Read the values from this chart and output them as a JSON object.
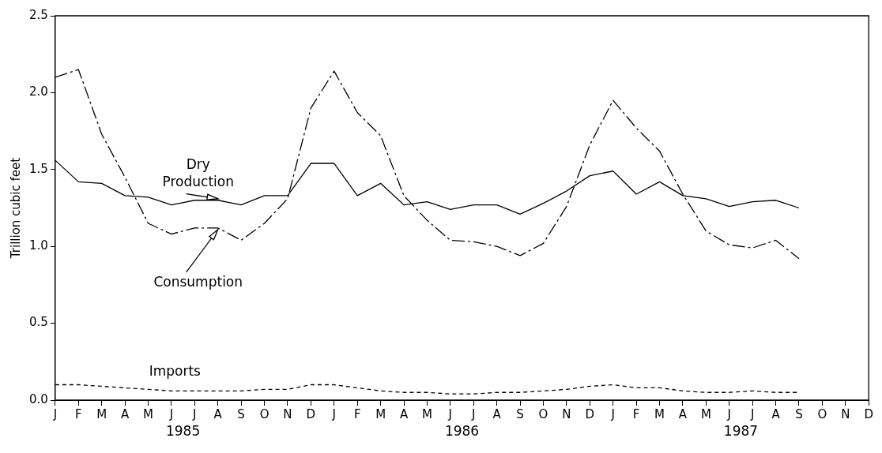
{
  "chart_data": {
    "type": "line",
    "ylabel": "Trillion cubic feet",
    "categories": [
      "J",
      "F",
      "M",
      "A",
      "M",
      "J",
      "J",
      "A",
      "S",
      "O",
      "N",
      "D",
      "J",
      "F",
      "M",
      "A",
      "M",
      "J",
      "J",
      "A",
      "S",
      "O",
      "N",
      "D",
      "J",
      "F",
      "M",
      "A",
      "M",
      "J",
      "J",
      "A",
      "S",
      "O",
      "N",
      "D"
    ],
    "series": [
      {
        "name": "Dry Production",
        "color": "#000000",
        "line_style": "solid",
        "values": [
          1.56,
          1.42,
          1.41,
          1.33,
          1.32,
          1.27,
          1.3,
          1.3,
          1.27,
          1.33,
          1.33,
          1.54,
          1.54,
          1.33,
          1.41,
          1.27,
          1.29,
          1.24,
          1.27,
          1.27,
          1.21,
          1.28,
          1.36,
          1.46,
          1.49,
          1.34,
          1.42,
          1.33,
          1.31,
          1.26,
          1.29,
          1.3,
          1.25,
          null,
          null,
          null
        ]
      },
      {
        "name": "Consumption",
        "color": "#000000",
        "line_style": "dashed",
        "values": [
          2.1,
          2.15,
          1.73,
          1.45,
          1.15,
          1.08,
          1.12,
          1.12,
          1.04,
          1.15,
          1.31,
          1.9,
          2.14,
          1.87,
          1.72,
          1.33,
          1.17,
          1.04,
          1.03,
          1.0,
          0.94,
          1.02,
          1.26,
          1.66,
          1.95,
          1.77,
          1.62,
          1.34,
          1.1,
          1.01,
          0.99,
          1.04,
          0.92,
          null,
          null,
          null
        ]
      },
      {
        "name": "Imports",
        "color": "#000000",
        "line_style": "dotted",
        "values": [
          0.1,
          0.1,
          0.09,
          0.08,
          0.07,
          0.06,
          0.06,
          0.06,
          0.06,
          0.07,
          0.07,
          0.1,
          0.1,
          0.08,
          0.06,
          0.05,
          0.05,
          0.04,
          0.04,
          0.05,
          0.05,
          0.06,
          0.07,
          0.09,
          0.1,
          0.08,
          0.08,
          0.06,
          0.05,
          0.05,
          0.06,
          0.05,
          0.05,
          null,
          null,
          null
        ]
      }
    ],
    "ylim": [
      0,
      2.5
    ],
    "yticks": [
      {
        "value": 0,
        "label": "0.0"
      },
      {
        "value": 0.5,
        "label": "0.5"
      },
      {
        "value": 1,
        "label": "1.0"
      },
      {
        "value": 1.5,
        "label": "1.5"
      },
      {
        "value": 2,
        "label": "2.0"
      },
      {
        "value": 2.5,
        "label": "2.5"
      }
    ],
    "annotations": [
      "1985",
      "1986",
      "1987"
    ],
    "grid": false,
    "legend": false,
    "marker": "none"
  }
}
